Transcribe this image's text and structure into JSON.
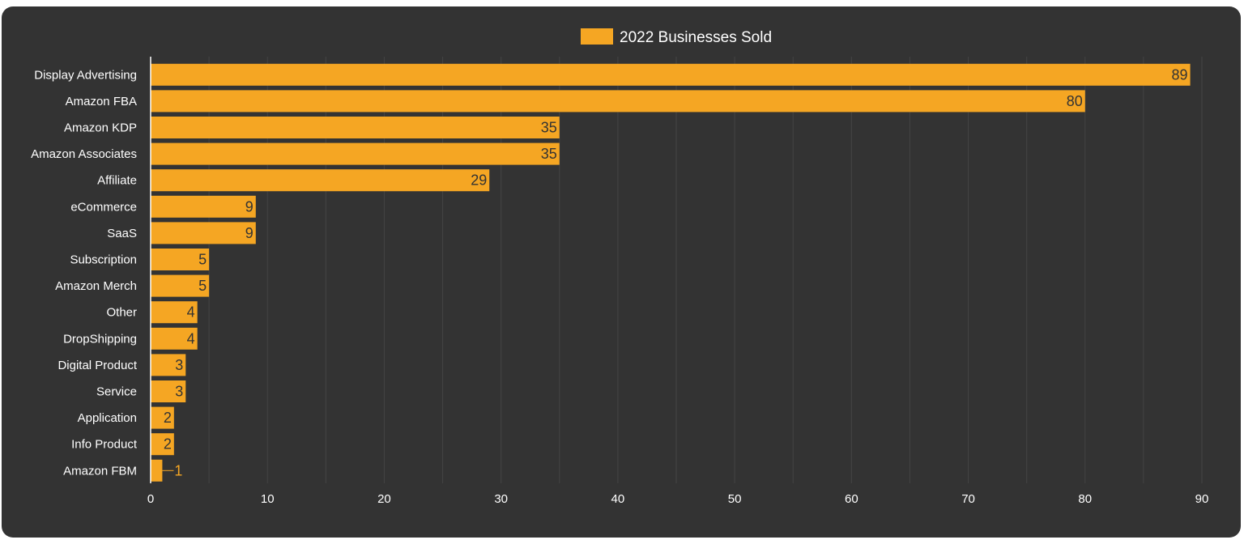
{
  "chart_data": {
    "type": "bar",
    "orientation": "horizontal",
    "categories": [
      "Display Advertising",
      "Amazon FBA",
      "Amazon KDP",
      "Amazon Associates",
      "Affiliate",
      "eCommerce",
      "SaaS",
      "Subscription",
      "Amazon Merch",
      "Other",
      "DropShipping",
      "Digital Product",
      "Service",
      "Application",
      "Info Product",
      "Amazon FBM"
    ],
    "series": [
      {
        "name": "2022 Businesses Sold",
        "values": [
          89,
          80,
          35,
          35,
          29,
          9,
          9,
          5,
          5,
          4,
          4,
          3,
          3,
          2,
          2,
          1
        ]
      }
    ],
    "data_labels": [
      "89",
      "80",
      "35",
      "35",
      "29",
      "9",
      "9",
      "5",
      "5",
      "4",
      "4",
      "3",
      "3",
      "2",
      "2",
      "1"
    ],
    "xlim": [
      0,
      90
    ],
    "x_ticks": [
      "0",
      "10",
      "20",
      "30",
      "40",
      "50",
      "60",
      "70",
      "80",
      "90"
    ],
    "grid": true,
    "legend_position": "top-center",
    "colors": {
      "bar": "#f5a623",
      "background": "#333333",
      "grid": "#444444",
      "text": "#ffffff",
      "label_inside": "#333333",
      "label_outside": "#f5a623"
    }
  }
}
